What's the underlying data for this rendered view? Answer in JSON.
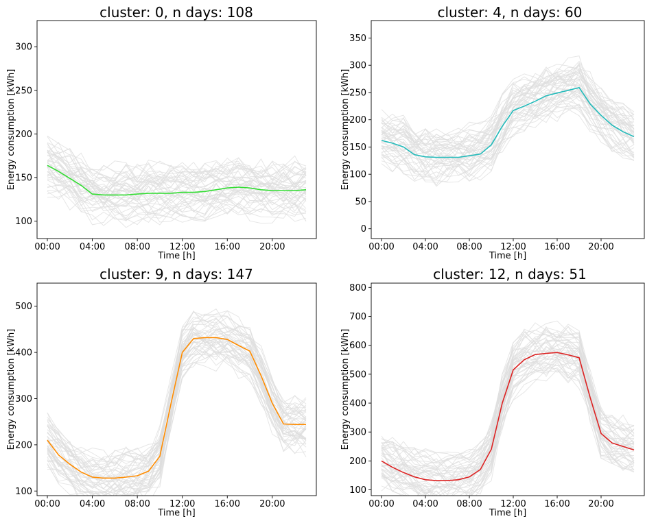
{
  "chart_data": [
    {
      "type": "line",
      "title": "cluster: 0, n days: 108",
      "xlabel": "Time [h]",
      "ylabel": "Energy consumption [kWh]",
      "x_tick_labels": [
        "00:00",
        "04:00",
        "08:00",
        "12:00",
        "16:00",
        "20:00"
      ],
      "y_ticks": [
        100,
        150,
        200,
        250,
        300
      ],
      "ylim": [
        80,
        330
      ],
      "grid": false,
      "x": [
        0,
        1,
        2,
        3,
        4,
        5,
        6,
        7,
        8,
        9,
        10,
        11,
        12,
        13,
        14,
        15,
        16,
        17,
        18,
        19,
        20,
        21,
        22,
        23
      ],
      "series": [
        {
          "color": "#33dd33",
          "values": [
            164,
            157,
            149,
            141,
            131,
            130,
            130,
            130,
            131,
            132,
            132,
            132,
            133,
            133,
            134,
            136,
            138,
            139,
            138,
            136,
            135,
            135,
            135,
            136
          ]
        }
      ],
      "background_color": "#dddddd"
    },
    {
      "type": "line",
      "title": "cluster: 4, n days: 60",
      "xlabel": "Time [h]",
      "ylabel": "Energy consumption [kWh]",
      "x_tick_labels": [
        "00:00",
        "04:00",
        "08:00",
        "12:00",
        "16:00",
        "20:00"
      ],
      "y_ticks": [
        0,
        50,
        100,
        150,
        200,
        250,
        300,
        350
      ],
      "ylim": [
        -18,
        382
      ],
      "grid": false,
      "x": [
        0,
        1,
        2,
        3,
        4,
        5,
        6,
        7,
        8,
        9,
        10,
        11,
        12,
        13,
        14,
        15,
        16,
        17,
        18,
        19,
        20,
        21,
        22,
        23
      ],
      "series": [
        {
          "color": "#22bbbb",
          "values": [
            162,
            157,
            150,
            136,
            132,
            131,
            131,
            131,
            134,
            137,
            154,
            188,
            217,
            225,
            234,
            244,
            249,
            254,
            259,
            229,
            208,
            190,
            178,
            169
          ]
        }
      ],
      "background_color": "#dddddd"
    },
    {
      "type": "line",
      "title": "cluster: 9, n days: 147",
      "xlabel": "Time [h]",
      "ylabel": "Energy consumption [kWh]",
      "x_tick_labels": [
        "00:00",
        "04:00",
        "08:00",
        "12:00",
        "16:00",
        "20:00"
      ],
      "y_ticks": [
        100,
        200,
        300,
        400,
        500
      ],
      "ylim": [
        90,
        550
      ],
      "grid": false,
      "x": [
        0,
        1,
        2,
        3,
        4,
        5,
        6,
        7,
        8,
        9,
        10,
        11,
        12,
        13,
        14,
        15,
        16,
        17,
        18,
        19,
        20,
        21,
        22,
        23
      ],
      "series": [
        {
          "color": "#ff8c00",
          "values": [
            210,
            178,
            158,
            141,
            130,
            128,
            128,
            130,
            133,
            143,
            175,
            290,
            400,
            430,
            432,
            432,
            428,
            415,
            403,
            350,
            290,
            245,
            244,
            244
          ]
        }
      ],
      "background_color": "#dddddd"
    },
    {
      "type": "line",
      "title": "cluster: 12, n days: 51",
      "xlabel": "Time [h]",
      "ylabel": "Energy consumption [kWh]",
      "x_tick_labels": [
        "00:00",
        "04:00",
        "08:00",
        "12:00",
        "16:00",
        "20:00"
      ],
      "y_ticks": [
        100,
        200,
        300,
        400,
        500,
        600,
        700,
        800
      ],
      "ylim": [
        80,
        815
      ],
      "grid": false,
      "x": [
        0,
        1,
        2,
        3,
        4,
        5,
        6,
        7,
        8,
        9,
        10,
        11,
        12,
        13,
        14,
        15,
        16,
        17,
        18,
        19,
        20,
        21,
        22,
        23
      ],
      "series": [
        {
          "color": "#dd2222",
          "values": [
            200,
            178,
            160,
            145,
            135,
            132,
            132,
            135,
            145,
            170,
            240,
            400,
            515,
            550,
            568,
            572,
            575,
            567,
            557,
            420,
            295,
            262,
            250,
            238
          ]
        }
      ],
      "background_color": "#dddddd"
    }
  ]
}
